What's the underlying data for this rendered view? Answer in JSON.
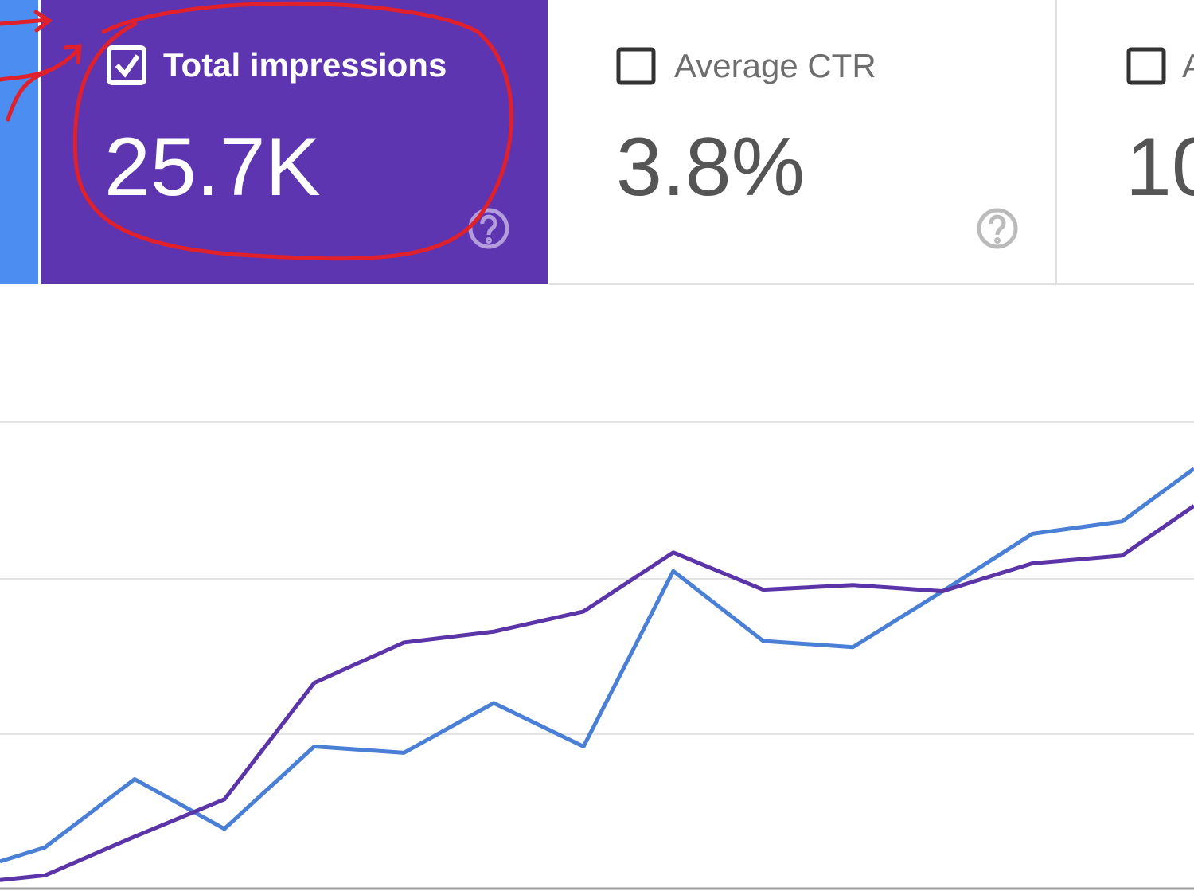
{
  "cards": [
    {
      "label": "Total impressions",
      "value": "25.7K"
    },
    {
      "label": "Average CTR",
      "value": "3.8%"
    },
    {
      "label": "A",
      "value": "10"
    }
  ],
  "chart_data": {
    "type": "line",
    "x": [
      -0.5,
      0,
      1,
      2,
      3,
      4,
      5,
      6,
      7,
      8,
      9,
      10,
      11,
      12,
      12.8
    ],
    "xlim": [
      -0.5,
      12.8
    ],
    "ylim": [
      0,
      3
    ],
    "series": [
      {
        "color": "#4a7fd6",
        "values": [
          0.17,
          0.26,
          0.7,
          0.38,
          0.91,
          0.87,
          1.19,
          0.91,
          2.04,
          1.59,
          1.55,
          1.91,
          2.28,
          2.36,
          2.7
        ]
      },
      {
        "color": "#5b34a8",
        "values": [
          0.05,
          0.08,
          0.33,
          0.57,
          1.32,
          1.58,
          1.65,
          1.78,
          2.16,
          1.92,
          1.95,
          1.91,
          2.09,
          2.14,
          2.46
        ]
      }
    ]
  }
}
